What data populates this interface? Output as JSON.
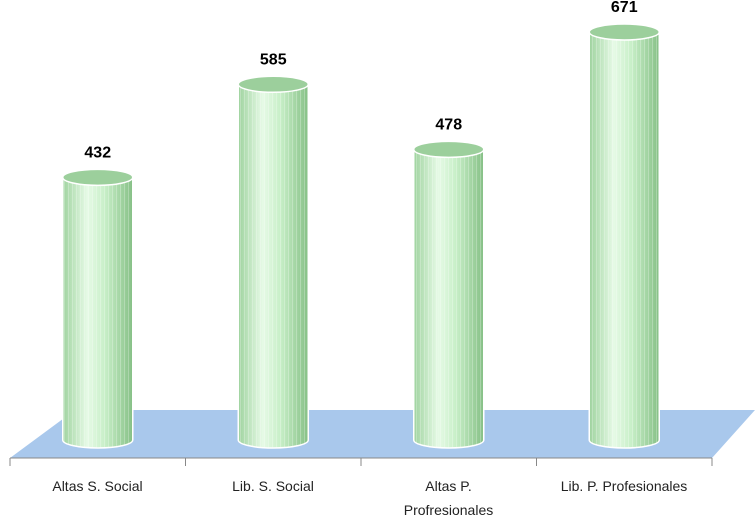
{
  "chart_data": {
    "type": "bar",
    "categories": [
      "Altas S. Social",
      "Lib. S. Social",
      "Altas P.\nProfresionales",
      "Lib. P. Profesionales"
    ],
    "values": [
      432,
      585,
      478,
      671
    ],
    "color": "#b8e6b8",
    "floor_color": "#a9c8ec"
  }
}
